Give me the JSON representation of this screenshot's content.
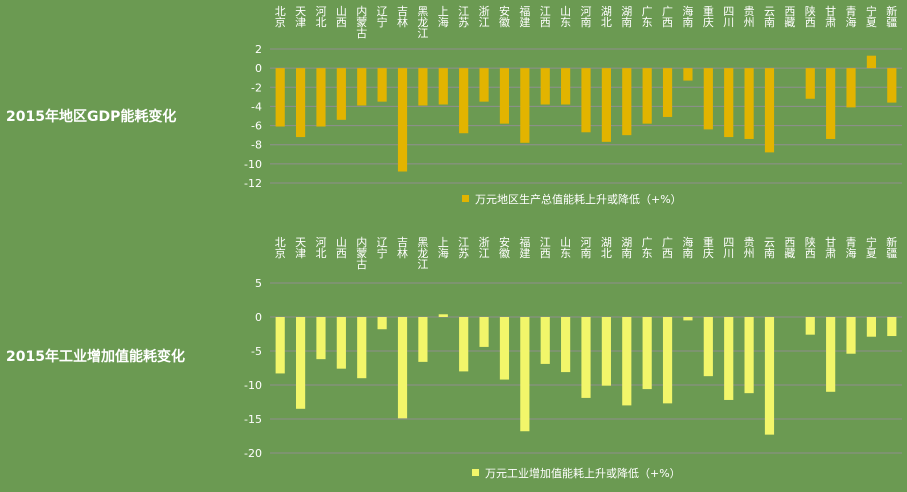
{
  "titles": {
    "gdp": "2015年地区GDP能耗变化",
    "ind": "2015年工业增加值能耗变化"
  },
  "colors": {
    "background": "#6b9a52",
    "gdp_bar": "#e2b400",
    "ind_bar": "#f2f66a",
    "grid": "#8f8f8f"
  },
  "chart_data": [
    {
      "type": "bar",
      "title": "2015年地区GDP能耗变化",
      "categories": [
        "北京",
        "天津",
        "河北",
        "山西",
        "内蒙古",
        "辽宁",
        "吉林",
        "黑龙江",
        "上海",
        "江苏",
        "浙江",
        "安徽",
        "福建",
        "江西",
        "山东",
        "河南",
        "湖北",
        "湖南",
        "广东",
        "广西",
        "海南",
        "重庆",
        "四川",
        "贵州",
        "云南",
        "西藏",
        "陕西",
        "甘肃",
        "青海",
        "宁夏",
        "新疆"
      ],
      "series": [
        {
          "name": "万元地区生产总值能耗上升或降低（+%）",
          "values": [
            -6.1,
            -7.2,
            -6.1,
            -5.4,
            -3.9,
            -3.5,
            -10.8,
            -3.9,
            -3.8,
            -6.8,
            -3.5,
            -5.8,
            -7.8,
            -3.8,
            -3.8,
            -6.7,
            -7.7,
            -7.0,
            -5.8,
            -5.1,
            -1.3,
            -6.4,
            -7.2,
            -7.4,
            -8.8,
            0,
            -3.2,
            -7.4,
            -4.1,
            1.3,
            -3.6
          ]
        }
      ],
      "ylim": [
        -12,
        2
      ],
      "yticks": [
        2,
        0,
        -2,
        -4,
        -6,
        -8,
        -10,
        -12
      ],
      "xlabel": "",
      "ylabel": "",
      "grid": true,
      "legend": "bottom"
    },
    {
      "type": "bar",
      "title": "2015年工业增加值能耗变化",
      "categories": [
        "北京",
        "天津",
        "河北",
        "山西",
        "内蒙古",
        "辽宁",
        "吉林",
        "黑龙江",
        "上海",
        "江苏",
        "浙江",
        "安徽",
        "福建",
        "江西",
        "山东",
        "河南",
        "湖北",
        "湖南",
        "广东",
        "广西",
        "海南",
        "重庆",
        "四川",
        "贵州",
        "云南",
        "西藏",
        "陕西",
        "甘肃",
        "青海",
        "宁夏",
        "新疆"
      ],
      "series": [
        {
          "name": "万元工业增加值能耗上升或降低（+%）",
          "values": [
            -8.3,
            -13.5,
            -6.2,
            -7.6,
            -9.0,
            -1.8,
            -14.9,
            -6.6,
            0.4,
            -8.0,
            -4.4,
            -9.2,
            -16.8,
            -6.9,
            -8.1,
            -11.9,
            -10.1,
            -13.0,
            -10.6,
            -12.7,
            -0.5,
            -8.7,
            -12.2,
            -11.2,
            -17.3,
            0,
            -2.6,
            -11.0,
            -5.4,
            -2.9,
            -2.8
          ]
        }
      ],
      "ylim": [
        -20,
        5
      ],
      "yticks": [
        5,
        0,
        -5,
        -10,
        -15,
        -20
      ],
      "xlabel": "",
      "ylabel": "",
      "grid": true,
      "legend": "bottom"
    }
  ]
}
